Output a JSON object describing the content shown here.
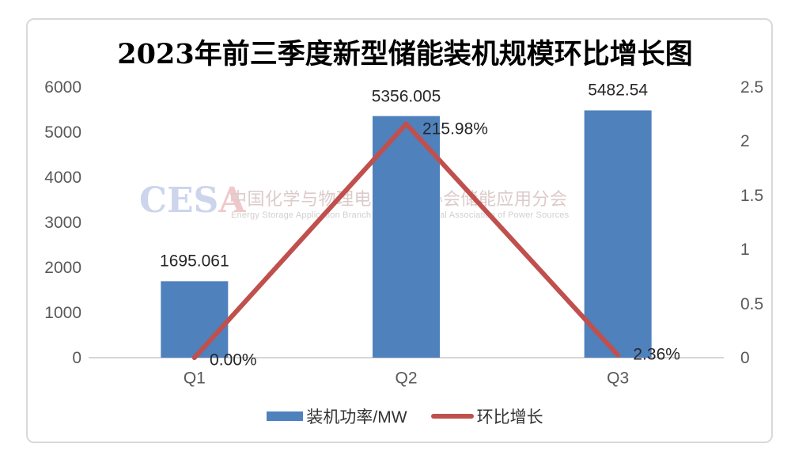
{
  "chart_data": {
    "type": "bar",
    "combo": "bar+line",
    "title": "2023年前三季度新型储能装机规模环比增长图",
    "categories": [
      "Q1",
      "Q2",
      "Q3"
    ],
    "series": [
      {
        "name": "装机功率/MW",
        "chart_type": "bar",
        "axis": "left",
        "values": [
          1695.061,
          5356.005,
          5482.54
        ],
        "data_labels": [
          "1695.061",
          "5356.005",
          "5482.54"
        ],
        "color": "#4F81BD"
      },
      {
        "name": "环比增长",
        "chart_type": "line",
        "axis": "right",
        "values": [
          0.0,
          2.1598,
          0.0236
        ],
        "data_labels": [
          "0.00%",
          "215.98%",
          "2.36%"
        ],
        "color": "#C0504D"
      }
    ],
    "left_axis": {
      "min": 0,
      "max": 6000,
      "tick_labels": [
        "0",
        "1000",
        "2000",
        "3000",
        "4000",
        "5000",
        "6000"
      ]
    },
    "right_axis": {
      "min": 0,
      "max": 2.5,
      "tick_labels": [
        "0",
        "0.5",
        "1",
        "1.5",
        "2",
        "2.5"
      ]
    },
    "gridlines": false,
    "legend_position": "bottom"
  },
  "watermark": {
    "logo_blue": "CES",
    "logo_red": "A",
    "cn": "中国化学与物理电源行业协会储能应用分会",
    "en": "Energy Storage Application Branch of China Industrial Association of Power Sources"
  },
  "colors": {
    "bar": "#4F81BD",
    "line": "#C0504D",
    "axis_text": "#595959",
    "data_label_text": "#262626",
    "frame_border": "#D9D9D9",
    "axis_line": "#C9C9C9"
  }
}
